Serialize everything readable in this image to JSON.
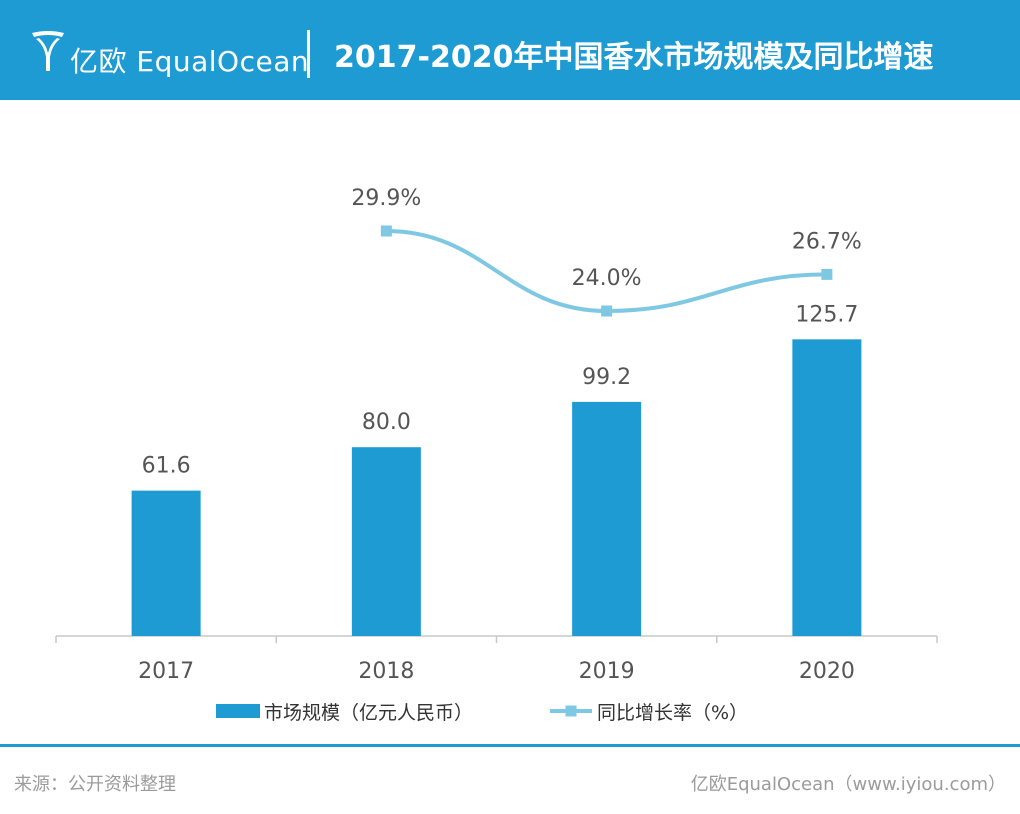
{
  "header": {
    "logo_text": "亿欧 EqualOcean",
    "title": "2017-2020年中国香水市场规模及同比增速",
    "background_color": "#1e9bd2"
  },
  "chart_data": {
    "type": "bar",
    "categories": [
      "2017",
      "2018",
      "2019",
      "2020"
    ],
    "series": [
      {
        "name": "市场规模（亿元人民币）",
        "type": "bar",
        "values": [
          61.6,
          80.0,
          99.2,
          125.7
        ],
        "labels": [
          "61.6",
          "80.0",
          "99.2",
          "125.7"
        ],
        "color": "#1e9bd2"
      },
      {
        "name": "同比增长率（%）",
        "type": "line",
        "values": [
          null,
          29.9,
          24.0,
          26.7
        ],
        "labels": [
          "",
          "29.9%",
          "24.0%",
          "26.7%"
        ],
        "color": "#7ec8e3"
      }
    ],
    "legend_position": "bottom",
    "grid": false
  },
  "footer": {
    "source": "来源：公开资料整理",
    "site": "亿欧EqualOcean（www.iyiou.com）"
  }
}
